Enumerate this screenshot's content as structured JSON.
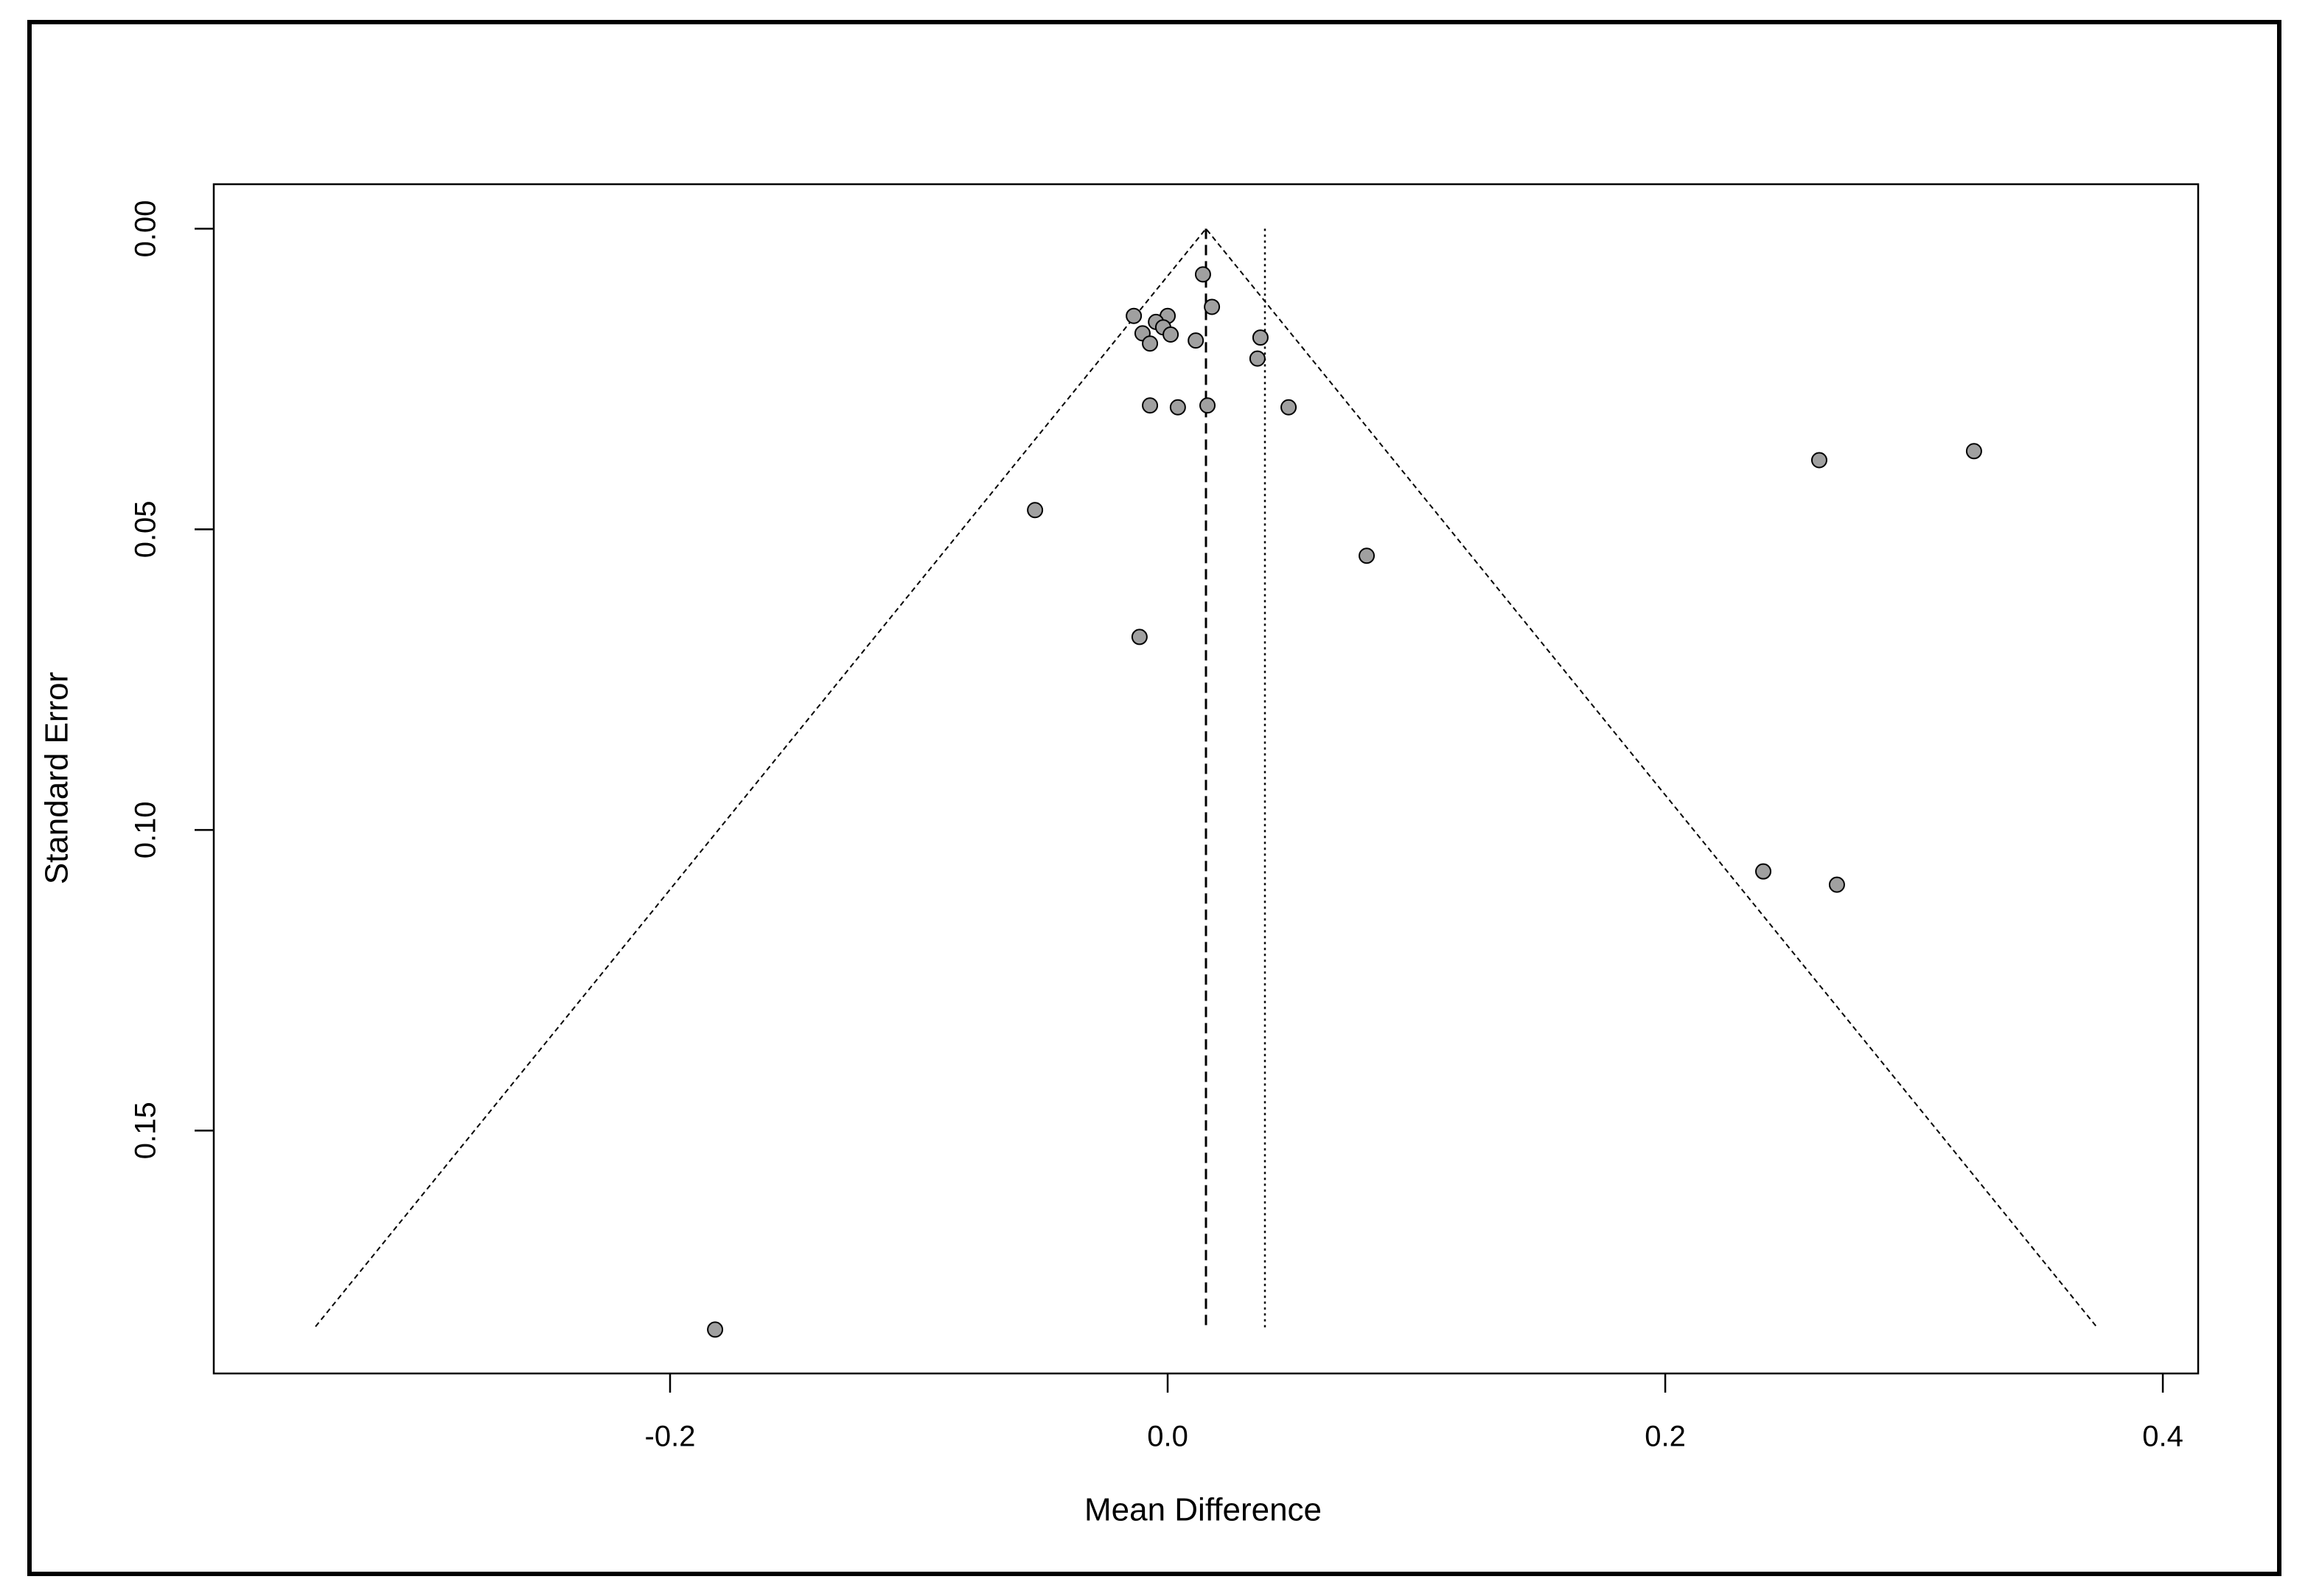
{
  "chart_data": {
    "type": "scatter",
    "x_label": "Mean Difference",
    "y_label": "Standard Error",
    "x": [
      0.0142,
      0.0178,
      -0.0136,
      0.0,
      -0.0047,
      -0.0018,
      -0.0101,
      0.0012,
      -0.0071,
      0.0113,
      0.0373,
      0.0361,
      -0.0071,
      0.0041,
      0.016,
      0.0486,
      0.2619,
      0.3241,
      -0.0533,
      0.08,
      -0.0113,
      0.2394,
      0.269,
      -0.1819
    ],
    "values": [
      0.0076,
      0.013,
      0.0145,
      0.0145,
      0.0155,
      0.0164,
      0.0174,
      0.0176,
      0.0191,
      0.0186,
      0.0181,
      0.0216,
      0.0294,
      0.0297,
      0.0294,
      0.0297,
      0.0385,
      0.037,
      0.0468,
      0.0544,
      0.0679,
      0.1069,
      0.1091,
      0.1831
    ],
    "color": "#a0a0a0",
    "funnel_center": 0.0154,
    "funnel_se_max": 0.1826,
    "funnel_z": 1.96,
    "reference_x": 0.0391,
    "xlim": [
      -0.3834,
      0.4142
    ],
    "ylim": [
      -0.0074,
      0.1904
    ],
    "y_reversed": true,
    "xticks": [
      -0.2,
      {
        "value": 0,
        "label": "0.0"
      },
      0.2,
      0.4
    ],
    "yticks": [
      {
        "value": 0,
        "label": "0.00"
      },
      {
        "value": 0.05,
        "label": "0.05"
      },
      {
        "value": 0.1,
        "label": "0.10"
      },
      {
        "value": 0.15,
        "label": "0.15"
      }
    ]
  }
}
